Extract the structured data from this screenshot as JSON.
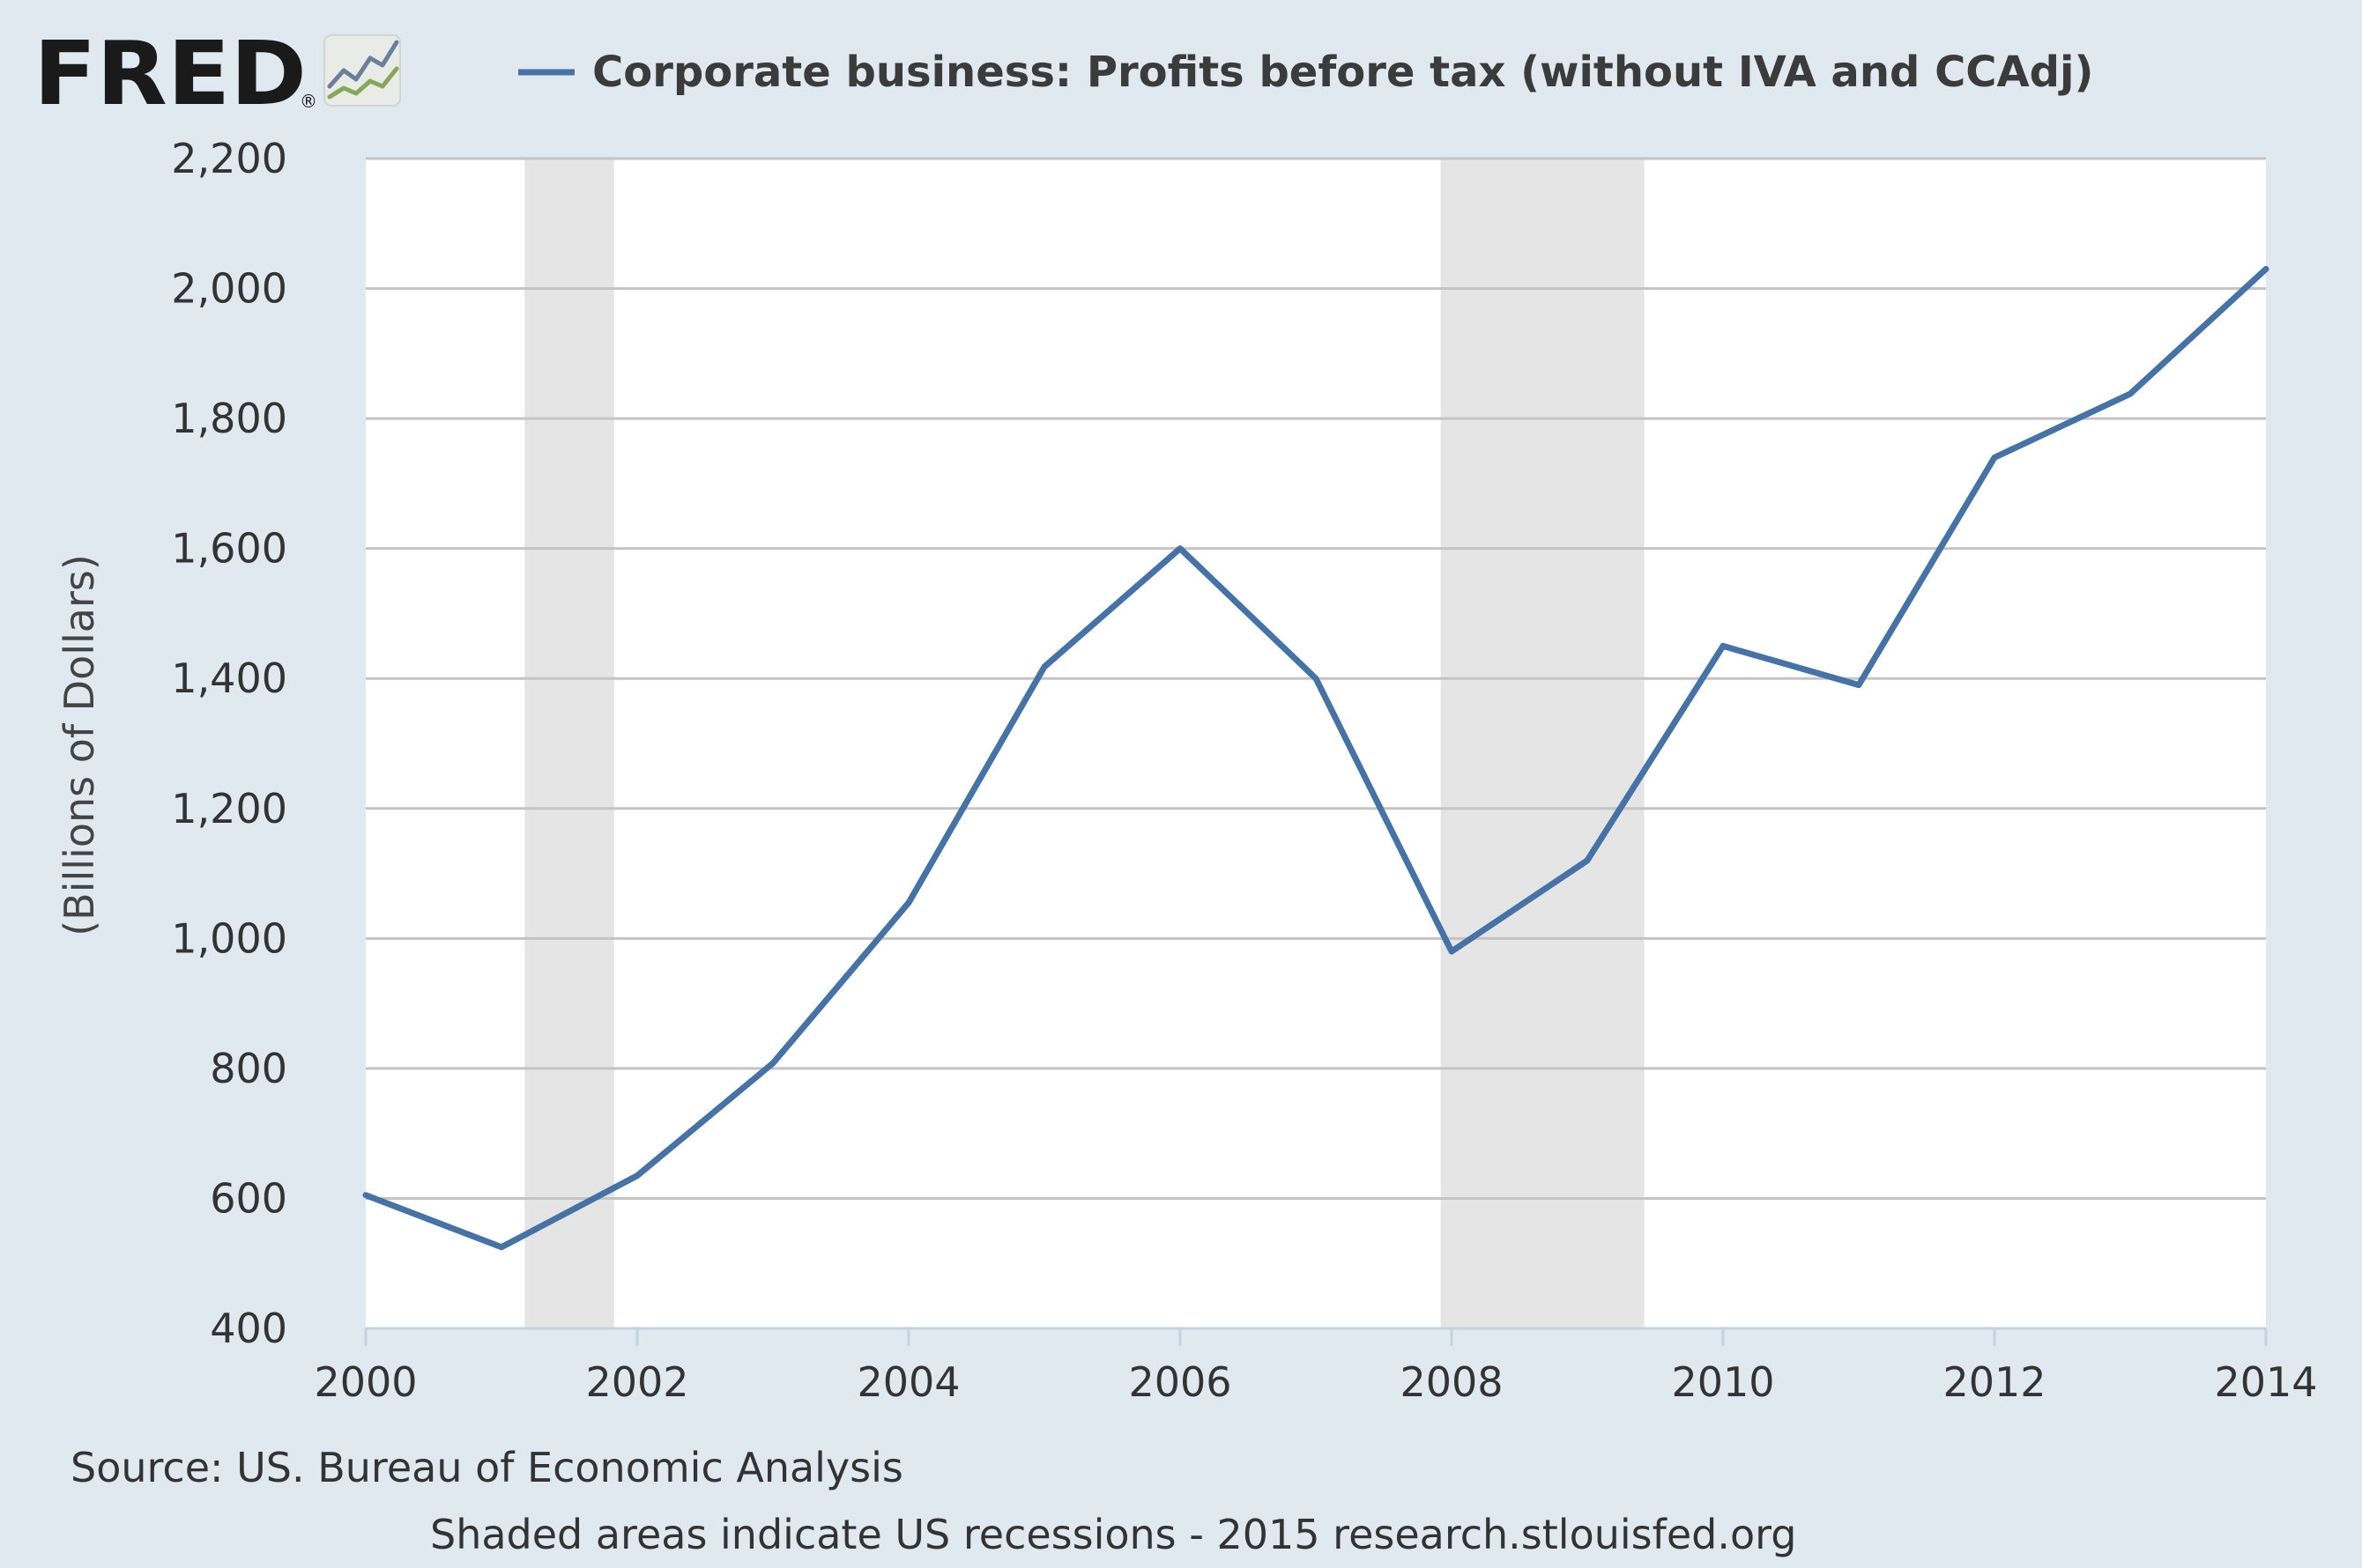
{
  "logo": {
    "text": "FRED",
    "registered_mark": "®"
  },
  "chart_data": {
    "type": "line",
    "series": [
      {
        "name": "Corporate business: Profits before tax (without IVA and CCAdj)",
        "color": "#4572a7",
        "x": [
          2000,
          2001,
          2002,
          2003,
          2004,
          2005,
          2006,
          2007,
          2008,
          2009,
          2010,
          2011,
          2012,
          2013,
          2014
        ],
        "values": [
          605,
          525,
          635,
          808,
          1055,
          1418,
          1600,
          1400,
          980,
          1120,
          1450,
          1390,
          1740,
          1838,
          2030
        ]
      }
    ],
    "xlim": [
      2000,
      2014
    ],
    "ylim": [
      400,
      2200
    ],
    "xticks": [
      "2000",
      "2002",
      "2004",
      "2006",
      "2008",
      "2010",
      "2012",
      "2014"
    ],
    "yticks": [
      "400",
      "600",
      "800",
      "1,000",
      "1,200",
      "1,400",
      "1,600",
      "1,800",
      "2,000",
      "2,200"
    ],
    "ylabel": "(Billions of Dollars)",
    "xlabel": "",
    "grid": "horizontal",
    "legend_position": "top",
    "recessions": [
      [
        2001.17,
        2001.83
      ],
      [
        2007.92,
        2009.42
      ]
    ],
    "recession_color": "#e5e5e5",
    "plot_background": "#ffffff",
    "page_background": "#e1e9f0"
  },
  "footer": {
    "source": "Source: US. Bureau of Economic Analysis",
    "note": "Shaded areas indicate US recessions - 2015 research.stlouisfed.org"
  }
}
